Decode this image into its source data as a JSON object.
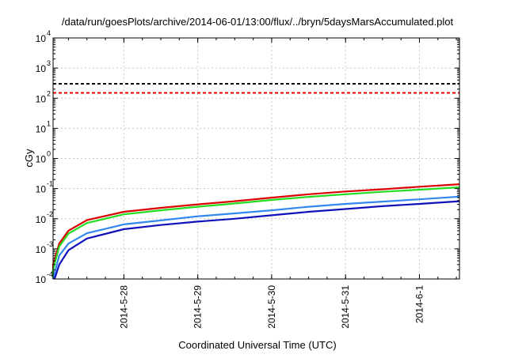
{
  "chart_data": {
    "type": "line",
    "title": "/data/run/goesPlots/archive/2014-06-01/13:00/flux/../bryn/5daysMarsAccumulated.plot",
    "xlabel": "Coordinated Universal Time (UTC)",
    "ylabel": "cGy",
    "y_scale": "log",
    "ylim": [
      0.0001,
      10000
    ],
    "xlim": [
      "2014-05-27 01:00",
      "2014-06-01 13:00"
    ],
    "grid": true,
    "x_ticks": [
      {
        "t": "2014-05-28 00:00",
        "label": "2014-5-28"
      },
      {
        "t": "2014-05-29 00:00",
        "label": "2014-5-29"
      },
      {
        "t": "2014-05-30 00:00",
        "label": "2014-5-30"
      },
      {
        "t": "2014-05-31 00:00",
        "label": "2014-5-31"
      },
      {
        "t": "2014-06-01 00:00",
        "label": "2014-6-1"
      }
    ],
    "y_ticks": [
      {
        "value": 0.0001,
        "mantissa": "10",
        "exponent": "-4"
      },
      {
        "value": 0.001,
        "mantissa": "10",
        "exponent": "-3"
      },
      {
        "value": 0.01,
        "mantissa": "10",
        "exponent": "-2"
      },
      {
        "value": 0.1,
        "mantissa": "10",
        "exponent": "-1"
      },
      {
        "value": 1,
        "mantissa": "10",
        "exponent": "0"
      },
      {
        "value": 10,
        "mantissa": "10",
        "exponent": "1"
      },
      {
        "value": 100,
        "mantissa": "10",
        "exponent": "2"
      },
      {
        "value": 1000,
        "mantissa": "10",
        "exponent": "3"
      },
      {
        "value": 10000,
        "mantissa": "10",
        "exponent": "4"
      }
    ],
    "thresholds": [
      {
        "value": 300,
        "color": "#000000",
        "style": "dashed"
      },
      {
        "value": 150,
        "color": "#ee0000",
        "style": "dashed"
      }
    ],
    "series": [
      {
        "color": "#dd0000",
        "points": [
          {
            "x": "2014-05-27 01:00",
            "y": 0.0003
          },
          {
            "x": "2014-05-27 03:00",
            "y": 0.0015
          },
          {
            "x": "2014-05-27 06:00",
            "y": 0.004
          },
          {
            "x": "2014-05-27 12:00",
            "y": 0.009
          },
          {
            "x": "2014-05-28 00:00",
            "y": 0.017
          },
          {
            "x": "2014-05-28 12:00",
            "y": 0.023
          },
          {
            "x": "2014-05-29 00:00",
            "y": 0.03
          },
          {
            "x": "2014-05-29 12:00",
            "y": 0.038
          },
          {
            "x": "2014-05-30 00:00",
            "y": 0.05
          },
          {
            "x": "2014-05-30 12:00",
            "y": 0.065
          },
          {
            "x": "2014-05-31 00:00",
            "y": 0.08
          },
          {
            "x": "2014-05-31 12:00",
            "y": 0.095
          },
          {
            "x": "2014-06-01 00:00",
            "y": 0.115
          },
          {
            "x": "2014-06-01 13:00",
            "y": 0.14
          }
        ]
      },
      {
        "color": "#22dd22",
        "points": [
          {
            "x": "2014-05-27 01:00",
            "y": 0.0002
          },
          {
            "x": "2014-05-27 03:00",
            "y": 0.0012
          },
          {
            "x": "2014-05-27 06:00",
            "y": 0.0032
          },
          {
            "x": "2014-05-27 12:00",
            "y": 0.0072
          },
          {
            "x": "2014-05-28 00:00",
            "y": 0.014
          },
          {
            "x": "2014-05-28 12:00",
            "y": 0.019
          },
          {
            "x": "2014-05-29 00:00",
            "y": 0.025
          },
          {
            "x": "2014-05-29 12:00",
            "y": 0.032
          },
          {
            "x": "2014-05-30 00:00",
            "y": 0.042
          },
          {
            "x": "2014-05-30 12:00",
            "y": 0.053
          },
          {
            "x": "2014-05-31 00:00",
            "y": 0.065
          },
          {
            "x": "2014-05-31 12:00",
            "y": 0.078
          },
          {
            "x": "2014-06-01 00:00",
            "y": 0.092
          },
          {
            "x": "2014-06-01 13:00",
            "y": 0.11
          }
        ]
      },
      {
        "color": "#3388ee",
        "points": [
          {
            "x": "2014-05-27 01:00",
            "y": 0.0001
          },
          {
            "x": "2014-05-27 03:00",
            "y": 0.0006
          },
          {
            "x": "2014-05-27 06:00",
            "y": 0.0015
          },
          {
            "x": "2014-05-27 12:00",
            "y": 0.0033
          },
          {
            "x": "2014-05-28 00:00",
            "y": 0.0065
          },
          {
            "x": "2014-05-28 12:00",
            "y": 0.0088
          },
          {
            "x": "2014-05-29 00:00",
            "y": 0.012
          },
          {
            "x": "2014-05-29 12:00",
            "y": 0.015
          },
          {
            "x": "2014-05-30 00:00",
            "y": 0.019
          },
          {
            "x": "2014-05-30 12:00",
            "y": 0.025
          },
          {
            "x": "2014-05-31 00:00",
            "y": 0.031
          },
          {
            "x": "2014-05-31 12:00",
            "y": 0.037
          },
          {
            "x": "2014-06-01 00:00",
            "y": 0.044
          },
          {
            "x": "2014-06-01 13:00",
            "y": 0.054
          }
        ]
      },
      {
        "color": "#1111bb",
        "points": [
          {
            "x": "2014-05-27 01:30",
            "y": 0.0001
          },
          {
            "x": "2014-05-27 03:00",
            "y": 0.0003
          },
          {
            "x": "2014-05-27 06:00",
            "y": 0.0009
          },
          {
            "x": "2014-05-27 12:00",
            "y": 0.0022
          },
          {
            "x": "2014-05-28 00:00",
            "y": 0.0045
          },
          {
            "x": "2014-05-28 12:00",
            "y": 0.0062
          },
          {
            "x": "2014-05-29 00:00",
            "y": 0.008
          },
          {
            "x": "2014-05-29 12:00",
            "y": 0.01
          },
          {
            "x": "2014-05-30 00:00",
            "y": 0.013
          },
          {
            "x": "2014-05-30 12:00",
            "y": 0.017
          },
          {
            "x": "2014-05-31 00:00",
            "y": 0.021
          },
          {
            "x": "2014-05-31 12:00",
            "y": 0.026
          },
          {
            "x": "2014-06-01 00:00",
            "y": 0.031
          },
          {
            "x": "2014-06-01 13:00",
            "y": 0.038
          }
        ]
      }
    ]
  }
}
